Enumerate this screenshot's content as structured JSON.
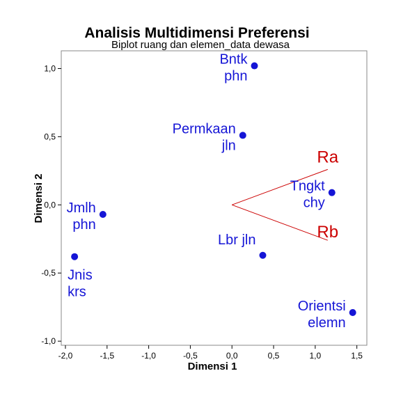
{
  "chart_data": {
    "type": "scatter",
    "title": "Analisis Multidimensi Preferensi",
    "subtitle": "Biplot ruang dan elemen_data dewasa",
    "xlabel": "Dimensi 1",
    "ylabel": "Dimensi 2",
    "xlim": [
      -2.05,
      1.62
    ],
    "ylim": [
      -1.03,
      1.13
    ],
    "xticks": [
      -2.0,
      -1.5,
      -1.0,
      -0.5,
      0.0,
      0.5,
      1.0,
      1.5
    ],
    "xtick_labels": [
      "-2,0",
      "-1,5",
      "-1,0",
      "-0,5",
      "0,0",
      "0,5",
      "1,0",
      "1,5"
    ],
    "yticks": [
      -1.0,
      -0.5,
      0.0,
      0.5,
      1.0
    ],
    "ytick_labels": [
      "-1,0",
      "-0,5",
      "0,0",
      "0,5",
      "1,0"
    ],
    "grid": false,
    "point_color": "#1515d6",
    "vector_color": "#cc0000",
    "points": [
      {
        "label": [
          "Bntk",
          "phn"
        ],
        "x": 0.27,
        "y": 1.02
      },
      {
        "label": [
          "Permkaan",
          "jln"
        ],
        "x": 0.13,
        "y": 0.51
      },
      {
        "label": [
          "Tngkt",
          "chy"
        ],
        "x": 1.2,
        "y": 0.09
      },
      {
        "label": [
          "Jmlh",
          "phn"
        ],
        "x": -1.55,
        "y": -0.07
      },
      {
        "label": [
          "Lbr jln"
        ],
        "x": 0.37,
        "y": -0.37
      },
      {
        "label": [
          "Jnis",
          "krs"
        ],
        "x": -1.89,
        "y": -0.38
      },
      {
        "label": [
          "Orientsi",
          "elemn"
        ],
        "x": 1.45,
        "y": -0.79
      }
    ],
    "vectors": [
      {
        "label": "Ra",
        "x": 1.15,
        "y": 0.26
      },
      {
        "label": "Rb",
        "x": 1.15,
        "y": -0.26
      }
    ]
  }
}
